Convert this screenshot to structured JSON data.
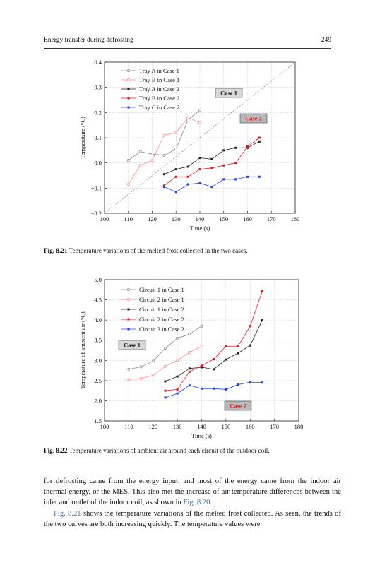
{
  "header": {
    "title": "Energy transfer during defrosting",
    "page_number": "249"
  },
  "figures": [
    {
      "caption_label": "Fig. 8.21",
      "caption_text": "Temperature variations of the melted frost collected in the two cases.",
      "chart_data": {
        "type": "line",
        "xlabel": "Time (s)",
        "ylabel": "Temperature (°C)",
        "xlim": [
          100,
          180
        ],
        "ylim": [
          -0.2,
          0.4
        ],
        "xticks": [
          100,
          110,
          120,
          130,
          140,
          150,
          160,
          170,
          180
        ],
        "yticks": [
          -0.2,
          -0.1,
          0.0,
          0.1,
          0.2,
          0.3,
          0.4
        ],
        "ytick_labels": [
          "−0.2",
          "−0.1",
          "0.0",
          "0.1",
          "0.2",
          "0.3",
          "0.4"
        ],
        "grid": true,
        "legend_position": "top-left",
        "annotations": [
          "Case 1",
          "Case 2"
        ],
        "series": [
          {
            "name": "Tray A in Case 1",
            "color": "#888888",
            "marker": "open-circle",
            "x": [
              110,
              115,
              120,
              125,
              130,
              135,
              140
            ],
            "y": [
              0.01,
              0.045,
              0.035,
              0.03,
              0.055,
              0.17,
              0.21
            ]
          },
          {
            "name": "Tray B in Case 1",
            "color": "#ff8c8c",
            "marker": "open-circle",
            "x": [
              110,
              115,
              120,
              125,
              130,
              135,
              140
            ],
            "y": [
              -0.085,
              -0.01,
              0.01,
              0.11,
              0.12,
              0.18,
              0.16
            ]
          },
          {
            "name": "Tray A in Case 2",
            "color": "#222222",
            "marker": "filled-square",
            "x": [
              125,
              130,
              135,
              140,
              145,
              150,
              155,
              160,
              165
            ],
            "y": [
              -0.045,
              -0.025,
              -0.015,
              0.02,
              0.015,
              0.05,
              0.06,
              0.06,
              0.085
            ]
          },
          {
            "name": "Tray B in Case 2",
            "color": "#e8141e",
            "marker": "filled-square",
            "x": [
              125,
              130,
              135,
              140,
              145,
              150,
              155,
              160,
              165
            ],
            "y": [
              -0.09,
              -0.055,
              -0.055,
              -0.025,
              -0.02,
              -0.01,
              0.0,
              0.065,
              0.1
            ]
          },
          {
            "name": "Tray C in Case 2",
            "color": "#1f3ff0",
            "marker": "filled-square",
            "x": [
              125,
              130,
              135,
              140,
              145,
              150,
              155,
              160,
              165
            ],
            "y": [
              -0.095,
              -0.115,
              -0.085,
              -0.08,
              -0.095,
              -0.065,
              -0.065,
              -0.055,
              -0.055
            ]
          }
        ]
      }
    },
    {
      "caption_label": "Fig. 8.22",
      "caption_text": "Temperature variations of ambient air around each circuit of the outdoor coil.",
      "chart_data": {
        "type": "line",
        "xlabel": "Time (s)",
        "ylabel": "Temperature of ambient air (°C)",
        "xlim": [
          100,
          180
        ],
        "ylim": [
          1.5,
          5.0
        ],
        "xticks": [
          100,
          110,
          120,
          130,
          140,
          150,
          160,
          170,
          180
        ],
        "yticks": [
          1.5,
          2.0,
          2.5,
          3.0,
          3.5,
          4.0,
          4.5,
          5.0
        ],
        "ytick_labels": [
          "1.5",
          "2.0",
          "2.5",
          "3.0",
          "3.5",
          "4.0",
          "4.5",
          "5.0"
        ],
        "grid": true,
        "legend_position": "top-left",
        "annotations": [
          "Case 1",
          "Case 2"
        ],
        "series": [
          {
            "name": "Circuit 1 in Case 1",
            "color": "#888888",
            "marker": "open-circle",
            "x": [
              110,
              115,
              120,
              125,
              130,
              135,
              140
            ],
            "y": [
              2.78,
              2.84,
              2.98,
              3.3,
              3.55,
              3.65,
              3.85
            ]
          },
          {
            "name": "Circuit 2 in Case 1",
            "color": "#ff8c8c",
            "marker": "open-circle",
            "x": [
              110,
              115,
              120,
              125,
              130,
              135,
              140
            ],
            "y": [
              2.53,
              2.55,
              2.63,
              2.85,
              3.0,
              3.2,
              3.35
            ]
          },
          {
            "name": "Circuit 1 in Case 2",
            "color": "#222222",
            "marker": "filled-square",
            "x": [
              125,
              130,
              135,
              140,
              145,
              150,
              155,
              160,
              165
            ],
            "y": [
              2.48,
              2.6,
              2.8,
              2.83,
              2.78,
              3.02,
              3.18,
              3.37,
              4.0
            ]
          },
          {
            "name": "Circuit 2 in Case 2",
            "color": "#e8141e",
            "marker": "filled-square",
            "x": [
              125,
              130,
              135,
              140,
              145,
              150,
              155,
              160,
              165
            ],
            "y": [
              2.25,
              2.28,
              2.72,
              2.87,
              3.03,
              3.35,
              3.35,
              3.85,
              4.72
            ]
          },
          {
            "name": "Circuit 3 in Case 2",
            "color": "#1f3ff0",
            "marker": "filled-square",
            "x": [
              125,
              130,
              135,
              140,
              145,
              150,
              155,
              160,
              165
            ],
            "y": [
              2.08,
              2.18,
              2.38,
              2.3,
              2.3,
              2.28,
              2.4,
              2.46,
              2.45
            ]
          }
        ]
      }
    }
  ],
  "paragraphs": [
    {
      "parts": [
        {
          "text": "for defrosting came from the energy input, and most of the energy came from the indoor air thermal energy, or the MES. This also met the increase of air temperature differences between the inlet and outlet of the indoor coil, as shown in ",
          "link": false
        },
        {
          "text": "Fig. 8.20",
          "link": true
        },
        {
          "text": ".",
          "link": false
        }
      ]
    },
    {
      "parts": [
        {
          "text": "Fig. 8.21",
          "link": true
        },
        {
          "text": " shows the temperature variations of the melted frost collected. As seen, the trends of the two curves are both increasing quickly. The temperature values were",
          "link": false
        }
      ]
    }
  ]
}
